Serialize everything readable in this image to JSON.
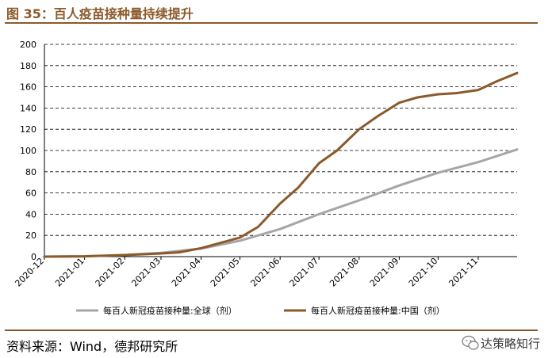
{
  "figure": {
    "title": "图 35：百人疫苗接种量持续提升",
    "source": "资料来源：Wind，德邦研究所",
    "watermark": "达策略知行"
  },
  "colors": {
    "brand": "#8b5a2b",
    "global_series": "#a6a6a6",
    "china_series": "#8b5a2b",
    "grid": "#000000"
  },
  "chart_data": {
    "type": "line",
    "title": "",
    "xlabel": "",
    "ylabel": "",
    "ylim": [
      0,
      200
    ],
    "yticks": [
      0,
      20,
      40,
      60,
      80,
      100,
      120,
      140,
      160,
      180,
      200
    ],
    "x_categories": [
      "2020-12",
      "2021-01",
      "2021-02",
      "2021-03",
      "2021-04",
      "2021-05",
      "2021-06",
      "2021-07",
      "2021-08",
      "2021-09",
      "2021-10",
      "2021-11"
    ],
    "grid": "horizontal dashed",
    "legend_position": "bottom",
    "series": [
      {
        "name": "每百人新冠疫苗接种量:全球（剂）",
        "color": "#a6a6a6",
        "points": [
          [
            "2020-12",
            0
          ],
          [
            "2021-01",
            0.3
          ],
          [
            "2021-02",
            1.5
          ],
          [
            "2021-03",
            3.5
          ],
          [
            "2021-04",
            7.5
          ],
          [
            "2021-05",
            15
          ],
          [
            "2021-06",
            26
          ],
          [
            "2021-07",
            40
          ],
          [
            "2021-08",
            53
          ],
          [
            "2021-09",
            67
          ],
          [
            "2021-10",
            79
          ],
          [
            "2021-11",
            89
          ],
          [
            "2021-12",
            101
          ]
        ]
      },
      {
        "name": "每百人新冠疫苗接种量:中国（剂）",
        "color": "#8b5a2b",
        "points": [
          [
            "2020-12",
            0
          ],
          [
            "2021-01",
            0.3
          ],
          [
            "2021-02",
            1.5
          ],
          [
            "2021-03",
            3
          ],
          [
            "2021-03-15",
            4
          ],
          [
            "2021-04",
            8
          ],
          [
            "2021-05",
            18
          ],
          [
            "2021-05-15",
            28
          ],
          [
            "2021-06",
            50
          ],
          [
            "2021-06-15",
            65
          ],
          [
            "2021-07",
            88
          ],
          [
            "2021-07-15",
            100
          ],
          [
            "2021-08",
            120
          ],
          [
            "2021-08-15",
            132
          ],
          [
            "2021-09",
            145
          ],
          [
            "2021-09-15",
            150
          ],
          [
            "2021-10",
            153
          ],
          [
            "2021-10-15",
            154
          ],
          [
            "2021-11",
            157
          ],
          [
            "2021-11-15",
            165
          ],
          [
            "2021-12",
            173
          ]
        ]
      }
    ]
  }
}
